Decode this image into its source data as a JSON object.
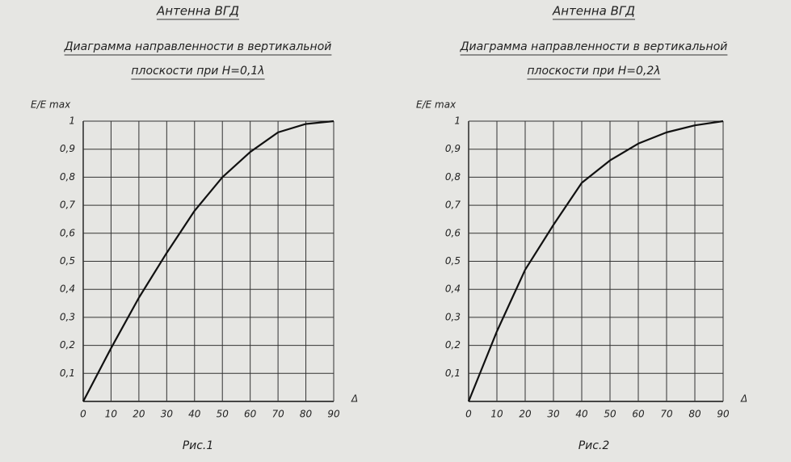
{
  "chart_data": [
    {
      "type": "line",
      "title": "Антенна ВГД",
      "subtitle_lines": [
        "Диаграмма направленности в вертикальной",
        "плоскости при H=0,1λ"
      ],
      "y_label": "E/E max",
      "x_label": "Δ",
      "caption": "Рис.1",
      "x": [
        0,
        10,
        20,
        30,
        40,
        50,
        60,
        70,
        80,
        90
      ],
      "series": [
        {
          "color": "#111111",
          "values": [
            0,
            0.19,
            0.37,
            0.53,
            0.68,
            0.8,
            0.89,
            0.96,
            0.99,
            1.0
          ]
        }
      ],
      "xlim": [
        0,
        90
      ],
      "xticks": [
        0,
        10,
        20,
        30,
        40,
        50,
        60,
        70,
        80,
        90
      ],
      "ylim": [
        0,
        1
      ],
      "yticks": [
        {
          "value": 0.1,
          "label": "0,1"
        },
        {
          "value": 0.2,
          "label": "0,2"
        },
        {
          "value": 0.3,
          "label": "0,3"
        },
        {
          "value": 0.4,
          "label": "0,4"
        },
        {
          "value": 0.5,
          "label": "0,5"
        },
        {
          "value": 0.6,
          "label": "0,6"
        },
        {
          "value": 0.7,
          "label": "0,7"
        },
        {
          "value": 0.8,
          "label": "0,8"
        },
        {
          "value": 0.9,
          "label": "0,9"
        },
        1
      ],
      "grid": true
    },
    {
      "type": "line",
      "title": "Антенна ВГД",
      "subtitle_lines": [
        "Диаграмма направленности в вертикальной",
        "плоскости при H=0,2λ"
      ],
      "y_label": "E/E max",
      "x_label": "Δ",
      "caption": "Рис.2",
      "x": [
        0,
        10,
        20,
        30,
        40,
        50,
        60,
        70,
        80,
        90
      ],
      "series": [
        {
          "color": "#111111",
          "values": [
            0,
            0.25,
            0.47,
            0.63,
            0.78,
            0.86,
            0.92,
            0.96,
            0.985,
            1.0
          ]
        }
      ],
      "xlim": [
        0,
        90
      ],
      "xticks": [
        0,
        10,
        20,
        30,
        40,
        50,
        60,
        70,
        80,
        90
      ],
      "ylim": [
        0,
        1
      ],
      "yticks": [
        {
          "value": 0.1,
          "label": "0,1"
        },
        {
          "value": 0.2,
          "label": "0,2"
        },
        {
          "value": 0.3,
          "label": "0,3"
        },
        {
          "value": 0.4,
          "label": "0,4"
        },
        {
          "value": 0.5,
          "label": "0,5"
        },
        {
          "value": 0.6,
          "label": "0,6"
        },
        {
          "value": 0.7,
          "label": "0,7"
        },
        {
          "value": 0.8,
          "label": "0,8"
        },
        {
          "value": 0.9,
          "label": "0,9"
        },
        1
      ],
      "grid": true
    }
  ]
}
